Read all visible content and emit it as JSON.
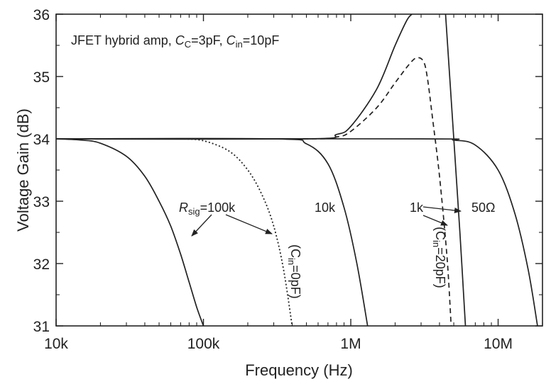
{
  "chart_data": {
    "type": "line",
    "title_parts": {
      "prefix": "JFET hybrid amp, ",
      "cc_sym": "C",
      "cc_sub": "C",
      "cc_val": "=3pF, ",
      "cin_sym": "C",
      "cin_sub": "in",
      "cin_val": "=10pF"
    },
    "xlabel": "Frequency (Hz)",
    "ylabel": "Voltage Gain (dB)",
    "x_scale": "log",
    "xlim": [
      10000,
      20000000
    ],
    "ylim": [
      31,
      36
    ],
    "x_ticks": [
      10000,
      100000,
      1000000,
      10000000
    ],
    "x_tick_labels": [
      "10k",
      "100k",
      "1M",
      "10M"
    ],
    "y_ticks": [
      31,
      32,
      33,
      34,
      35,
      36
    ],
    "y_tick_labels": [
      "31",
      "32",
      "33",
      "34",
      "35",
      "36"
    ],
    "grid": false,
    "series": [
      {
        "style": "solid",
        "x": [
          10000,
          15000,
          20000,
          30000,
          40000,
          50000,
          60000,
          70000,
          80000,
          90000,
          100000
        ],
        "y": [
          34.0,
          33.98,
          33.93,
          33.72,
          33.4,
          33.0,
          32.6,
          32.15,
          31.7,
          31.3,
          31.0
        ]
      },
      {
        "style": "dotted",
        "x": [
          70000,
          100000,
          150000,
          200000,
          250000,
          300000,
          350000,
          400000
        ],
        "y": [
          34.0,
          33.97,
          33.8,
          33.5,
          33.1,
          32.6,
          31.9,
          31.0
        ]
      },
      {
        "style": "solid",
        "x": [
          10000,
          300000,
          500000,
          700000,
          900000,
          1100000,
          1300000
        ],
        "y": [
          34.0,
          34.0,
          33.92,
          33.6,
          32.9,
          32.0,
          31.0
        ]
      },
      {
        "style": "dashed",
        "x": [
          10000,
          500000,
          800000,
          1000000,
          1500000,
          2000000,
          2500000,
          2800000,
          3100000,
          3300000,
          3600000,
          4000000,
          4500000,
          4800000
        ],
        "y": [
          34.0,
          34.0,
          34.03,
          34.12,
          34.5,
          34.9,
          35.2,
          35.3,
          35.25,
          35.0,
          34.3,
          33.4,
          32.1,
          31.0
        ]
      },
      {
        "style": "solid",
        "x": [
          10000,
          500000,
          800000,
          1000000,
          1500000,
          2000000,
          2400000,
          2600000
        ],
        "y": [
          34.0,
          34.0,
          34.07,
          34.2,
          34.8,
          35.5,
          35.9,
          36.0
        ]
      },
      {
        "style": "solid",
        "x": [
          4400000,
          5000000,
          5500000,
          6000000
        ],
        "y": [
          36.0,
          34.0,
          32.5,
          31.0
        ]
      },
      {
        "style": "solid",
        "x": [
          10000,
          3000000,
          5000000,
          7000000,
          10000000,
          13000000,
          16000000,
          18500000
        ],
        "y": [
          34.0,
          34.0,
          33.98,
          33.9,
          33.5,
          32.8,
          31.9,
          31.0
        ]
      }
    ],
    "annotations": {
      "rsig_sym": "R",
      "rsig_sub": "sig",
      "rsig_val": "=100k",
      "cin0_open": "(C",
      "cin0_sub": "in",
      "cin0_val": "=0pF)",
      "label_10k": "10k",
      "label_1k": "1k",
      "cin20_open": "(C",
      "cin20_sub": "in",
      "cin20_val": "=20pF)",
      "label_50ohm": "50Ω"
    },
    "colors": {
      "line": "#222222",
      "axis": "#222222",
      "background": "#ffffff"
    }
  }
}
